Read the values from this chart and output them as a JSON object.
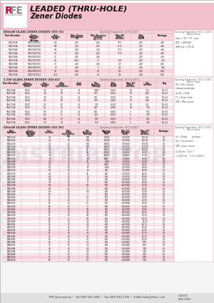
{
  "title_line1": "LEADED (THRU-HOLE)",
  "title_line2": "Zener Diodes",
  "header_bg": "#f2bfcc",
  "table_pink": "#f7d5dc",
  "light_pink": "#fce8ee",
  "white": "#ffffff",
  "border_color": "#c8a0aa",
  "text_dark": "#222222",
  "text_med": "#444444",
  "text_light": "#666666",
  "logo_r_color": "#c0003c",
  "logo_fe_color": "#888888",
  "footer_bg": "#e0e0e0",
  "footer_text": "RFE International  •  Tel:(949) 830-1988  •  Fax:(949) 830-1788  •  E-Mail Sales@rfeinc.com",
  "doc_number": "C3C031",
  "doc_rev": "REV 2001",
  "page_bg": "#f5f5f5",
  "watermark": "DISTRIBUTOR",
  "t1_title": "800mW GLASS ZENER DIODES (DO-35)",
  "t1_optemp": "Operating Temperature: -65°C to 150°C",
  "t1_cols": [
    "Part Number",
    "Zener\nNominal\nZener\nVoltage (BZT)",
    "Test\nCurrent\n(mA)",
    "Max Zener\nImpedance\n(Ω)",
    "Max Reverse\nvoltage\nV@77°C",
    "Max DC\nZener\nCurrent\n(mA)",
    "Max\nTemperature\nCoefficient",
    "Package"
  ],
  "t1_rows": [
    [
      "1N4742A",
      "1N4742ZCE6",
      "8.2",
      "200",
      "200",
      "10.5",
      "200",
      "±30",
      "-0.060",
      "DO35/DO41"
    ],
    [
      "1N4743A",
      "1N4743ZCE5",
      "8.5",
      "200",
      "200",
      "11.6",
      "200",
      "±30",
      "-0.060",
      "DO35/DO41"
    ],
    [
      "1N4744A",
      "1N4744ZCE6",
      "9.1",
      "200",
      "200",
      "13.0",
      "200",
      "±20",
      "-0.060",
      "DO35/DO41"
    ],
    [
      "1N4745A",
      "1N4745ZCE6",
      "10",
      "200",
      "200",
      "13.8",
      "200",
      "±30",
      "-0.060",
      "DO35/DO41"
    ],
    [
      "1N4746A",
      "1N4746ZCE5",
      "11",
      "200",
      "200",
      "-",
      "200",
      "±50",
      "-0.070",
      "DO35/DO41"
    ],
    [
      "1N4747A",
      "1N4747ZCE5",
      "12",
      "200+",
      "17",
      "1.18",
      "200",
      "750",
      "-0.060",
      "DO35/DO41"
    ],
    [
      "1N4748A",
      "1N4748ZCE5",
      "13",
      "200",
      "200",
      "0.3",
      "200",
      "400",
      "-0.065",
      "DO35/DO41"
    ],
    [
      "1N4749A",
      "1N4749ZCE5",
      "15",
      "200",
      "5",
      "0.1",
      "200",
      "100",
      "-0.068",
      "DO35/DO41"
    ],
    [
      "1N4750A",
      "1N4750ZCE4",
      "16",
      "200",
      "40",
      "0.1",
      "200",
      "460",
      "-0.0686",
      "DO35/DO41"
    ],
    [
      "1N4751A",
      "1N4751ZCE4",
      "43.0",
      "200",
      "40",
      "0.1",
      "200",
      "460",
      "-0.0778",
      "DO35/DO41"
    ]
  ],
  "t2_title": "1.5W GLASS ZENER DIODES (DO-41)",
  "t2_optemp": "Operating Temperature: -65°C to 150°C",
  "t2_cols": [
    "Part Number",
    "Zener\nNominal\nZener",
    "Test\nCurrent\n(mA)",
    "Max Zener\nImpedance",
    "Test\n(mA)",
    "Max\nReverse\nvoltage",
    "Max\nTemperature\nCoefficient\n(mA)",
    "Max DC\nZener\nCurrent\n(mA)",
    "Max\nCurrent\n(mA)",
    "Package"
  ],
  "t2_rows": [
    [
      "1N4728A",
      "DO41",
      "3.3",
      "76",
      "1.1",
      "1090",
      "0.460",
      "10",
      "314",
      "DO-41"
    ],
    [
      "1N4729A",
      "DO41",
      "3.6",
      "69",
      "1.1",
      "970",
      "0.460",
      "10",
      "280",
      "DO-41"
    ],
    [
      "1N4730A",
      "DO41",
      "3.9",
      "64",
      "1.1",
      "905",
      "0.360",
      "10",
      "264",
      "DO-41"
    ],
    [
      "1N4731A",
      "DO41",
      "4.3",
      "58",
      "1.1",
      "700",
      "0.425",
      "10",
      "230",
      "DO-41"
    ],
    [
      "1N4732A",
      "DO41",
      "4.7",
      "53",
      "1.1",
      "745",
      "0.320",
      "10",
      "215",
      "DO-41"
    ],
    [
      "1N4733A",
      "DO41",
      "5.1",
      "49",
      "1.1",
      "625",
      "0.380",
      "10",
      "178",
      "DO-41"
    ],
    [
      "1N4734A",
      "DO41",
      "5.6",
      "45",
      "1.1",
      "550",
      "0.400",
      "5",
      "162",
      "DO-41"
    ],
    [
      "1N4735A",
      "DO41",
      "6.2",
      "41",
      "1.1",
      "400",
      "0.400",
      "5",
      "138",
      "DO-41"
    ],
    [
      "1N4736A",
      "DO41",
      "6.8",
      "37",
      "1.1",
      "105",
      "0.400",
      "5",
      "121",
      "DO-41"
    ],
    [
      "1N4737A",
      "DO41",
      "7.5",
      "34",
      "1.1",
      "150",
      "0.800",
      "5",
      "100",
      "DO-41"
    ]
  ],
  "t3_title": "500mW GLASS ZENER DIODES (DO-35)",
  "t3_optemp": "Operating Temperature: -65°C to 150°C",
  "t3_cols": [
    "Part\nNumber",
    "Zener\nNominal\nVoltage\n(BZT)",
    "Test\nCurrent",
    "Max\nZener\nImpedance\n(Ω)",
    "Min\nReverse\nvoltage\nRating",
    "Voltage\nRange\n(V)",
    "Min DC\nCurrent\n(mA)",
    "Max DC\nZener\nCurrent\n(mA)",
    "Package"
  ],
  "t3_rows": [
    [
      "1N5221B",
      "",
      "2.4",
      "20",
      "100",
      "17000",
      "-30.0000",
      "135.00",
      "0.1",
      "100",
      "500",
      "SOD27/DO35"
    ],
    [
      "1N5222B",
      "",
      "2.5",
      "20",
      "100",
      "17000",
      "-30.0000",
      "125.00",
      "0.1",
      "100",
      "500",
      "SOD27/DO35"
    ],
    [
      "1N5223B",
      "",
      "2.7",
      "20",
      "100",
      "15000",
      "-30.0000",
      "116.00",
      "0.1",
      "100",
      "500",
      "SOD27/DO35"
    ],
    [
      "1N5224B",
      "",
      "2.8",
      "20",
      "100",
      "14000",
      "-30.0000",
      "112.00",
      "0.1",
      "100",
      "500",
      "SOD27/DO35"
    ],
    [
      "1N5225B",
      "",
      "3.0",
      "20",
      "95",
      "13000",
      "-30.0000",
      "104.00",
      "0.1",
      "100",
      "500",
      "SOD27/DO35"
    ],
    [
      "1N5226B",
      "",
      "3.3",
      "20",
      "90",
      "12000",
      "-20.0000",
      "95.00",
      "0.1",
      "100",
      "500",
      "SOD27/DO35"
    ],
    [
      "1N5227B",
      "",
      "3.6",
      "20",
      "85",
      "11000",
      "-20.0000",
      "87.00",
      "0.1",
      "100",
      "500",
      "SOD27/DO35"
    ],
    [
      "1N5228B",
      "",
      "3.9",
      "20",
      "80",
      "9000",
      "-20.0000",
      "80.00",
      "0.1",
      "100",
      "500",
      "SOD27/DO35"
    ],
    [
      "1N5229B",
      "",
      "4.3",
      "20",
      "76",
      "7000",
      "-20.0000",
      "73.00",
      "0.1",
      "100",
      "500",
      "SOD27/DO35"
    ],
    [
      "1N5230B",
      "",
      "4.7",
      "20",
      "70",
      "4000",
      "-20.0000",
      "66.00",
      "0.1",
      "100",
      "500",
      "SOD27/DO35"
    ],
    [
      "1N5231B",
      "",
      "5.1",
      "20",
      "67",
      "1500",
      "-20.0000",
      "61.00",
      "0.1",
      "100",
      "500",
      "SOD27/DO35"
    ],
    [
      "1N5232B",
      "",
      "5.6",
      "20",
      "60",
      "400",
      "-20.0000",
      "56.00",
      "0.1",
      "100",
      "500",
      "SOD27/DO35"
    ],
    [
      "1N5233B",
      "",
      "6.0",
      "20",
      "36",
      "150",
      "-20.0000",
      "52.00",
      "0.1",
      "100",
      "500",
      "SOD27/DO35"
    ],
    [
      "1N5234B",
      "",
      "6.2",
      "20",
      "35",
      "100",
      "-20.0000",
      "50.00",
      "0.1",
      "100",
      "500",
      "SOD27/DO35"
    ],
    [
      "1N5235B",
      "",
      "6.8",
      "20",
      "15",
      "100",
      "+20.0000",
      "44.00",
      "0.1",
      "100",
      "500",
      "SOD27/DO35"
    ],
    [
      "1N5236B",
      "",
      "7.5",
      "20",
      "9",
      "100",
      "+20.0000",
      "40.00",
      "0.1",
      "100",
      "500",
      "SOD27/DO35"
    ],
    [
      "1N5237B",
      "",
      "8.2",
      "20",
      "8.5",
      "100",
      "+20.0000",
      "37.00",
      "0.1",
      "100",
      "500",
      "SOD27/DO35"
    ],
    [
      "1N5238B",
      "",
      "8.7",
      "20",
      "8",
      "100",
      "+20.0000",
      "34.00",
      "0.1",
      "100",
      "500",
      "SOD27/DO35"
    ],
    [
      "1N5239B",
      "",
      "9.1",
      "20",
      "7.6",
      "100",
      "+20.0000",
      "33.00",
      "0.1",
      "100",
      "500",
      "SOD27/DO35"
    ],
    [
      "1N5240B",
      "",
      "10",
      "20",
      "7",
      "100",
      "+20.0000",
      "29.00",
      "0.1",
      "100",
      "500",
      "SOD27/DO35"
    ],
    [
      "1N5241B",
      "",
      "11",
      "20",
      "6.5",
      "100",
      "+30.0000",
      "27.00",
      "0.1",
      "100",
      "500",
      "SOD27/DO35"
    ],
    [
      "1N5242B",
      "",
      "12",
      "20",
      "6",
      "100",
      "+30.0000",
      "25.00",
      "0.1",
      "100",
      "500",
      "SOD27/DO35"
    ],
    [
      "1N5243B",
      "",
      "13",
      "20",
      "5.5",
      "100",
      "+30.0000",
      "23.00",
      "0.1",
      "100",
      "500",
      "SOD27/DO35"
    ],
    [
      "1N5244B",
      "",
      "14",
      "20",
      "5",
      "100",
      "+40.0000",
      "21.00",
      "0.1",
      "100",
      "500",
      "SOD27/DO35"
    ],
    [
      "1N5245B",
      "",
      "15",
      "20",
      "4.5",
      "100",
      "+40.0000",
      "20.00",
      "0.1",
      "100",
      "500",
      "SOD27/DO35"
    ],
    [
      "1N5246B",
      "",
      "16",
      "20",
      "4.5",
      "100",
      "+40.0000",
      "18.50",
      "0.1",
      "100",
      "500",
      "SOD27/DO35"
    ],
    [
      "1N5247B",
      "",
      "17",
      "20",
      "4.0",
      "100",
      "+40.0000",
      "17.50",
      "0.1",
      "100",
      "500",
      "SOD27/DO35"
    ],
    [
      "1N5248B",
      "",
      "18",
      "20",
      "4.0",
      "100",
      "+40.0000",
      "16.50",
      "0.1",
      "100",
      "500",
      "SOD27/DO35"
    ],
    [
      "1N5249B",
      "",
      "19",
      "20",
      "3.8",
      "100",
      "+40.0000",
      "15.50",
      "0.1",
      "100",
      "500",
      "SOD27/DO35"
    ],
    [
      "1N5250B",
      "",
      "20",
      "20",
      "3.6",
      "100",
      "+40.0000",
      "14.75",
      "0.1",
      "100",
      "500",
      "SOD27/DO35"
    ],
    [
      "1N5251B",
      "",
      "22",
      "20",
      "3.5",
      "100",
      "+40.0000",
      "13.25",
      "0.1",
      "100",
      "500",
      "SOD27/DO35"
    ],
    [
      "1N5252B",
      "",
      "24",
      "20",
      "3.5",
      "100",
      "+50.0000",
      "12.25",
      "0.1",
      "100",
      "500",
      "SOD27/DO35"
    ],
    [
      "1N5253B",
      "",
      "25",
      "20",
      "3.5",
      "100",
      "+50.0000",
      "11.75",
      "0.1",
      "100",
      "500",
      "SOD27/DO35"
    ],
    [
      "1N5254B",
      "",
      "27",
      "20",
      "3.5",
      "100",
      "+50.0000",
      "10.75",
      "0.1",
      "100",
      "500",
      "SOD27/DO35"
    ],
    [
      "1N5255B",
      "",
      "28",
      "20",
      "3.5",
      "100",
      "+50.0000",
      "10.25",
      "0.1",
      "100",
      "500",
      "SOD27/DO35"
    ],
    [
      "1N5256B",
      "",
      "30",
      "20",
      "3.5",
      "100",
      "+50.0000",
      "9.70",
      "0.1",
      "100",
      "500",
      "SOD27/DO35"
    ],
    [
      "1N5257B",
      "",
      "33",
      "20",
      "3.2",
      "100",
      "+50.0000",
      "8.70",
      "0.1",
      "100",
      "500",
      "SOD27/DO35"
    ],
    [
      "1N5258B",
      "",
      "36",
      "20",
      "3.0",
      "100",
      "+60.0000",
      "7.80",
      "0.1",
      "100",
      "500",
      "SOD27/DO35"
    ],
    [
      "1N5259B",
      "",
      "39",
      "20",
      "2.8",
      "100",
      "+60.0000",
      "7.20",
      "0.1",
      "100",
      "500",
      "SOD27/DO35"
    ],
    [
      "1N5260B",
      "",
      "43",
      "20",
      "2.5",
      "100",
      "+60.0000",
      "6.50",
      "0.1",
      "100",
      "500",
      "SOD27/DO35"
    ],
    [
      "1N5261B",
      "",
      "47",
      "20",
      "2.5",
      "100",
      "+60.0000",
      "5.90",
      "0.1",
      "100",
      "500",
      "SOD27/DO35"
    ],
    [
      "1N5262B",
      "",
      "56",
      "20",
      "2.0",
      "100",
      "+60.0000",
      "5.20",
      "0.1",
      "100",
      "500",
      "SOD27/DO35"
    ]
  ]
}
